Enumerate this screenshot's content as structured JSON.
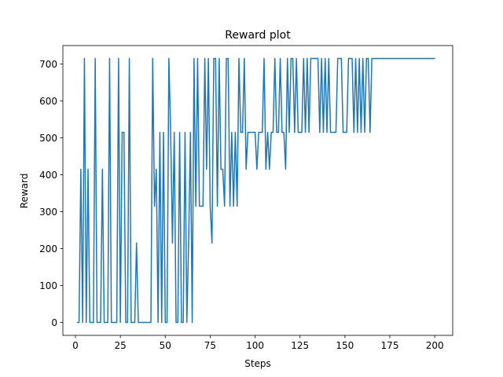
{
  "chart_data": {
    "type": "line",
    "title": "Reward plot",
    "xlabel": "Steps",
    "ylabel": "Reward",
    "xlim": [
      -7,
      210
    ],
    "ylim": [
      -35,
      750
    ],
    "xticks": [
      0,
      25,
      50,
      75,
      100,
      125,
      150,
      175,
      200
    ],
    "yticks": [
      0,
      100,
      200,
      300,
      400,
      500,
      600,
      700
    ],
    "grid": false,
    "line_color": "#1f77b4",
    "series": [
      {
        "x": [
          1,
          2,
          3,
          4,
          5,
          6,
          7,
          8,
          9,
          10,
          11,
          12,
          13,
          14,
          15,
          16,
          17,
          18,
          19,
          20,
          21,
          22,
          23,
          24,
          25,
          26,
          27,
          28,
          29,
          30,
          31,
          32,
          33,
          34,
          35,
          36,
          37,
          38,
          39,
          40,
          41,
          42,
          43,
          44,
          45,
          46,
          47,
          48,
          49,
          50,
          51,
          52,
          53,
          54,
          55,
          56,
          57,
          58,
          59,
          60,
          61,
          62,
          63,
          64,
          65,
          66,
          67,
          68,
          69,
          70,
          71,
          72,
          73,
          74,
          75,
          76,
          77,
          78,
          79,
          80,
          81,
          82,
          83,
          84,
          85,
          86,
          87,
          88,
          89,
          90,
          91,
          92,
          93,
          94,
          95,
          96,
          97,
          98,
          99,
          100,
          101,
          102,
          103,
          104,
          105,
          106,
          107,
          108,
          109,
          110,
          111,
          112,
          113,
          114,
          115,
          116,
          117,
          118,
          119,
          120,
          121,
          122,
          123,
          124,
          125,
          126,
          127,
          128,
          129,
          130,
          131,
          132,
          133,
          134,
          135,
          136,
          137,
          138,
          139,
          140,
          141,
          142,
          143,
          144,
          145,
          146,
          147,
          148,
          149,
          150,
          151,
          152,
          153,
          154,
          155,
          156,
          157,
          158,
          159,
          160,
          161,
          162,
          163,
          164,
          165,
          166,
          167,
          168,
          169,
          170,
          171,
          172,
          173,
          174,
          175,
          176,
          177,
          178,
          179,
          180,
          181,
          182,
          183,
          184,
          185,
          186,
          187,
          188,
          189,
          190,
          191,
          192,
          193,
          194,
          195,
          196,
          197,
          198,
          199,
          200
        ],
        "values": [
          0,
          0,
          415,
          0,
          715,
          0,
          415,
          0,
          0,
          0,
          715,
          0,
          0,
          0,
          415,
          0,
          0,
          0,
          715,
          0,
          0,
          0,
          0,
          715,
          0,
          515,
          515,
          0,
          0,
          715,
          0,
          0,
          0,
          215,
          0,
          0,
          0,
          0,
          0,
          0,
          0,
          0,
          715,
          315,
          415,
          0,
          515,
          0,
          515,
          0,
          0,
          715,
          515,
          215,
          515,
          0,
          0,
          515,
          0,
          0,
          515,
          0,
          215,
          515,
          0,
          715,
          315,
          715,
          315,
          315,
          315,
          715,
          415,
          715,
          315,
          215,
          715,
          715,
          315,
          715,
          415,
          415,
          315,
          715,
          715,
          315,
          515,
          315,
          515,
          315,
          715,
          515,
          515,
          715,
          415,
          515,
          515,
          515,
          515,
          515,
          415,
          515,
          515,
          515,
          715,
          415,
          515,
          415,
          515,
          515,
          715,
          515,
          515,
          715,
          515,
          515,
          415,
          715,
          515,
          715,
          715,
          515,
          715,
          515,
          515,
          515,
          715,
          515,
          715,
          515,
          715,
          715,
          715,
          715,
          715,
          515,
          715,
          515,
          715,
          515,
          715,
          515,
          515,
          515,
          515,
          715,
          715,
          715,
          515,
          515,
          515,
          715,
          715,
          715,
          515,
          715,
          515,
          715,
          515,
          715,
          515,
          715,
          715,
          515,
          715,
          715,
          715,
          715,
          715,
          715,
          715,
          715,
          715,
          715,
          715,
          715,
          715,
          715,
          715,
          715,
          715,
          715,
          715,
          715,
          715,
          715,
          715,
          715,
          715,
          715,
          715,
          715,
          715,
          715,
          715,
          715,
          715,
          715,
          715,
          715
        ]
      }
    ]
  }
}
